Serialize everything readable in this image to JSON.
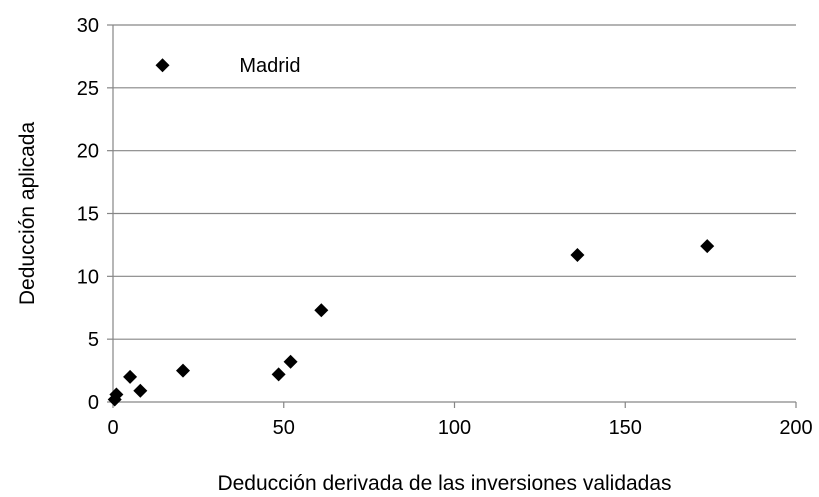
{
  "chart_data": {
    "type": "scatter",
    "title": "",
    "xlabel": "Deducción derivada de las inversiones validadas",
    "ylabel": "Deducción aplicada",
    "xlim": [
      0,
      200
    ],
    "ylim": [
      0,
      30
    ],
    "xticks": [
      0,
      50,
      100,
      150,
      200
    ],
    "yticks": [
      0,
      5,
      10,
      15,
      20,
      25,
      30
    ],
    "grid": "horizontal",
    "legend": "none",
    "marker": "diamond",
    "marker_color": "#000000",
    "series": [
      {
        "points": [
          {
            "x": 0.5,
            "y": 0.2
          },
          {
            "x": 1,
            "y": 0.6
          },
          {
            "x": 5,
            "y": 2.0
          },
          {
            "x": 8,
            "y": 0.9
          },
          {
            "x": 20.5,
            "y": 2.5
          },
          {
            "x": 48.5,
            "y": 2.2
          },
          {
            "x": 52,
            "y": 3.2
          },
          {
            "x": 61,
            "y": 7.3
          },
          {
            "x": 136,
            "y": 11.7
          },
          {
            "x": 174,
            "y": 12.4
          },
          {
            "x": 14.5,
            "y": 26.8
          }
        ]
      }
    ],
    "annotations": [
      {
        "text": "Madrid",
        "x": 37,
        "y": 26.8
      }
    ]
  }
}
